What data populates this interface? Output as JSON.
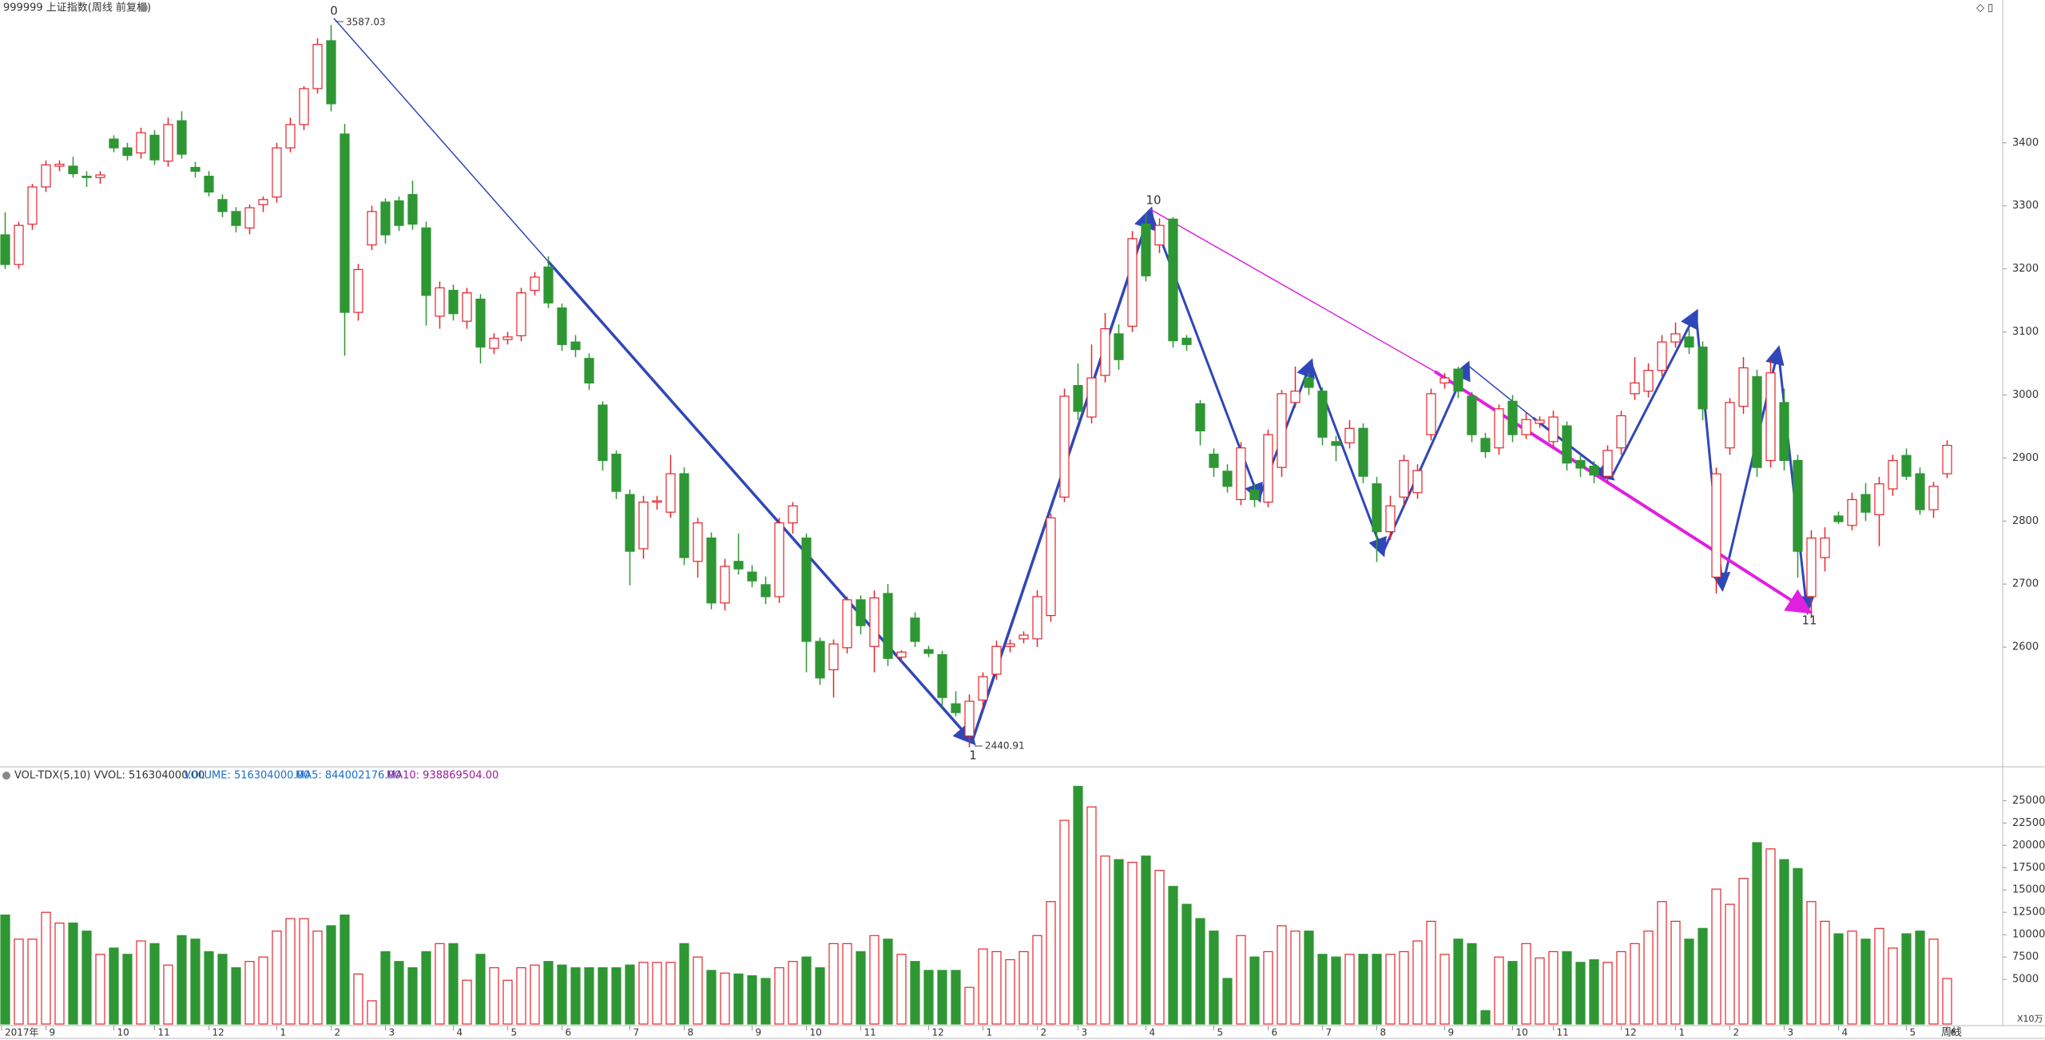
{
  "chart_data": {
    "type": "candlestick",
    "title": "999999 上证指数(周线 前复权)",
    "period": "周线",
    "vol_unit": "X10万",
    "vol_header": [
      "VOL-TDX(5,10) VVOL: 516304000.00",
      "VOLUME: 516304000.00",
      "MA5: 844002176.00",
      "MA10: 938869504.00"
    ],
    "annotations": [
      "0",
      "1",
      "10",
      "11"
    ],
    "up_color": "#e3262d",
    "down_color": "#2f9634",
    "ylim": [
      2410,
      3600
    ],
    "yticks": [
      2600,
      2700,
      2800,
      2900,
      3000,
      3100,
      3200,
      3300,
      3400
    ],
    "vol_ylim": [
      0,
      27000
    ],
    "vol_yticks": [
      5000,
      7500,
      10000,
      12500,
      15000,
      17500,
      20000,
      22500,
      25000
    ],
    "categories": [
      "2017年",
      null,
      null,
      "9",
      null,
      null,
      null,
      null,
      "10",
      null,
      null,
      "11",
      null,
      null,
      null,
      "12",
      null,
      null,
      null,
      null,
      "1",
      null,
      null,
      null,
      "2",
      null,
      null,
      null,
      "3",
      null,
      null,
      null,
      null,
      "4",
      null,
      null,
      null,
      "5",
      null,
      null,
      null,
      "6",
      null,
      null,
      null,
      null,
      "7",
      null,
      null,
      null,
      "8",
      null,
      null,
      null,
      null,
      "9",
      null,
      null,
      null,
      "10",
      null,
      null,
      null,
      "11",
      null,
      null,
      null,
      null,
      "12",
      null,
      null,
      null,
      "1",
      null,
      null,
      null,
      "2",
      null,
      null,
      "3",
      null,
      null,
      null,
      null,
      "4",
      null,
      null,
      null,
      null,
      "5",
      null,
      null,
      null,
      "6",
      null,
      null,
      null,
      "7",
      null,
      null,
      null,
      "8",
      null,
      null,
      null,
      null,
      "9",
      null,
      null,
      null,
      null,
      "10",
      null,
      null,
      "11",
      null,
      null,
      null,
      null,
      "12",
      null,
      null,
      null,
      "1",
      null,
      null,
      null,
      "2",
      null,
      null,
      null,
      "3",
      null,
      null,
      null,
      "4",
      null,
      null,
      null,
      null,
      "5",
      null,
      null,
      "6"
    ],
    "candles": [
      [
        3254,
        3290,
        3200,
        3207
      ],
      [
        3207,
        3275,
        3200,
        3269
      ],
      [
        3271,
        3335,
        3262,
        3330
      ],
      [
        3330,
        3372,
        3322,
        3365
      ],
      [
        3363,
        3372,
        3355,
        3366
      ],
      [
        3363,
        3378,
        3345,
        3351
      ],
      [
        3347,
        3355,
        3330,
        3345
      ],
      [
        3345,
        3355,
        3335,
        3349
      ],
      [
        3406,
        3412,
        3385,
        3392
      ],
      [
        3392,
        3400,
        3372,
        3380
      ],
      [
        3384,
        3424,
        3375,
        3416
      ],
      [
        3412,
        3420,
        3365,
        3373
      ],
      [
        3371,
        3440,
        3362,
        3429
      ],
      [
        3435,
        3450,
        3375,
        3382
      ],
      [
        3361,
        3370,
        3345,
        3355
      ],
      [
        3347,
        3355,
        3315,
        3322
      ],
      [
        3310,
        3318,
        3282,
        3291
      ],
      [
        3291,
        3298,
        3258,
        3269
      ],
      [
        3265,
        3302,
        3255,
        3297
      ],
      [
        3302,
        3315,
        3290,
        3310
      ],
      [
        3314,
        3400,
        3305,
        3392
      ],
      [
        3392,
        3440,
        3385,
        3429
      ],
      [
        3429,
        3490,
        3420,
        3486
      ],
      [
        3486,
        3566,
        3478,
        3556
      ],
      [
        3562,
        3587.03,
        3450,
        3462
      ],
      [
        3414,
        3430,
        3062,
        3131
      ],
      [
        3131,
        3208,
        3118,
        3199
      ],
      [
        3238,
        3300,
        3230,
        3291
      ],
      [
        3306,
        3312,
        3240,
        3254
      ],
      [
        3308,
        3315,
        3260,
        3269
      ],
      [
        3318,
        3340,
        3262,
        3271
      ],
      [
        3265,
        3275,
        3110,
        3158
      ],
      [
        3125,
        3180,
        3105,
        3170
      ],
      [
        3166,
        3175,
        3118,
        3129
      ],
      [
        3117,
        3170,
        3105,
        3162
      ],
      [
        3152,
        3160,
        3050,
        3076
      ],
      [
        3074,
        3098,
        3065,
        3090
      ],
      [
        3088,
        3100,
        3080,
        3092
      ],
      [
        3094,
        3170,
        3085,
        3162
      ],
      [
        3166,
        3195,
        3158,
        3187
      ],
      [
        3203,
        3220,
        3138,
        3146
      ],
      [
        3138,
        3145,
        3070,
        3080
      ],
      [
        3084,
        3095,
        3060,
        3072
      ],
      [
        3058,
        3066,
        3008,
        3019
      ],
      [
        2984,
        2990,
        2880,
        2896
      ],
      [
        2906,
        2912,
        2835,
        2847
      ],
      [
        2842,
        2850,
        2698,
        2752
      ],
      [
        2756,
        2840,
        2740,
        2830
      ],
      [
        2830,
        2840,
        2818,
        2832
      ],
      [
        2814,
        2905,
        2805,
        2875
      ],
      [
        2875,
        2885,
        2730,
        2742
      ],
      [
        2736,
        2805,
        2710,
        2797
      ],
      [
        2773,
        2782,
        2660,
        2670
      ],
      [
        2670,
        2740,
        2658,
        2728
      ],
      [
        2736,
        2780,
        2715,
        2724
      ],
      [
        2719,
        2730,
        2695,
        2705
      ],
      [
        2699,
        2712,
        2668,
        2680
      ],
      [
        2680,
        2805,
        2670,
        2797
      ],
      [
        2797,
        2830,
        2780,
        2824
      ],
      [
        2773,
        2780,
        2560,
        2609
      ],
      [
        2609,
        2615,
        2540,
        2551
      ],
      [
        2564,
        2612,
        2520,
        2605
      ],
      [
        2599,
        2680,
        2590,
        2675
      ],
      [
        2675,
        2682,
        2620,
        2634
      ],
      [
        2601,
        2690,
        2560,
        2678
      ],
      [
        2685,
        2700,
        2570,
        2582
      ],
      [
        2584,
        2595,
        2576,
        2592
      ],
      [
        2646,
        2655,
        2600,
        2609
      ],
      [
        2596,
        2602,
        2584,
        2590
      ],
      [
        2588,
        2594,
        2505,
        2520
      ],
      [
        2510,
        2530,
        2490,
        2496
      ],
      [
        2459,
        2525,
        2440.91,
        2514
      ],
      [
        2516,
        2560,
        2500,
        2553
      ],
      [
        2557,
        2610,
        2548,
        2601
      ],
      [
        2601,
        2612,
        2592,
        2605
      ],
      [
        2613,
        2625,
        2606,
        2619
      ],
      [
        2613,
        2690,
        2600,
        2680
      ],
      [
        2650,
        2812,
        2640,
        2805
      ],
      [
        2838,
        3010,
        2830,
        2998
      ],
      [
        3015,
        3050,
        2960,
        2974
      ],
      [
        2965,
        3080,
        2955,
        3027
      ],
      [
        3031,
        3130,
        3020,
        3105
      ],
      [
        3097,
        3112,
        3040,
        3056
      ],
      [
        3109,
        3260,
        3100,
        3248
      ],
      [
        3271,
        3288,
        3180,
        3189
      ],
      [
        3238,
        3280,
        3225,
        3269
      ],
      [
        3279,
        3282,
        3075,
        3086
      ],
      [
        3090,
        3095,
        3070,
        3080
      ],
      [
        2986,
        2992,
        2920,
        2943
      ],
      [
        2906,
        2915,
        2870,
        2885
      ],
      [
        2879,
        2890,
        2845,
        2855
      ],
      [
        2834,
        2925,
        2825,
        2916
      ],
      [
        2849,
        2860,
        2822,
        2834
      ],
      [
        2830,
        2945,
        2822,
        2937
      ],
      [
        2885,
        3008,
        2870,
        3002
      ],
      [
        2988,
        3045,
        2980,
        3006
      ],
      [
        3027,
        3035,
        3000,
        3012
      ],
      [
        3006,
        3012,
        2920,
        2933
      ],
      [
        2926,
        2935,
        2895,
        2920
      ],
      [
        2924,
        2960,
        2915,
        2947
      ],
      [
        2947,
        2955,
        2860,
        2871
      ],
      [
        2859,
        2870,
        2735,
        2783
      ],
      [
        2783,
        2840,
        2770,
        2824
      ],
      [
        2838,
        2905,
        2825,
        2896
      ],
      [
        2845,
        2890,
        2835,
        2880
      ],
      [
        2937,
        3010,
        2928,
        3002
      ],
      [
        3019,
        3035,
        3010,
        3027
      ],
      [
        3041,
        3045,
        2995,
        3006
      ],
      [
        2998,
        3005,
        2925,
        2937
      ],
      [
        2931,
        2940,
        2900,
        2910
      ],
      [
        2916,
        2985,
        2905,
        2978
      ],
      [
        2990,
        3000,
        2925,
        2937
      ],
      [
        2937,
        2972,
        2930,
        2961
      ],
      [
        2955,
        2966,
        2948,
        2960
      ],
      [
        2926,
        2975,
        2918,
        2965
      ],
      [
        2951,
        2958,
        2880,
        2892
      ],
      [
        2896,
        2905,
        2870,
        2884
      ],
      [
        2887,
        2895,
        2860,
        2873
      ],
      [
        2871,
        2920,
        2862,
        2912
      ],
      [
        2916,
        2975,
        2905,
        2967
      ],
      [
        3002,
        3060,
        2992,
        3019
      ],
      [
        3006,
        3050,
        2996,
        3039
      ],
      [
        3039,
        3095,
        3030,
        3084
      ],
      [
        3084,
        3115,
        3075,
        3097
      ],
      [
        3092,
        3105,
        3065,
        3076
      ],
      [
        3076,
        3085,
        2960,
        2978
      ],
      [
        2711,
        2885,
        2685,
        2875
      ],
      [
        2916,
        2995,
        2905,
        2988
      ],
      [
        2982,
        3060,
        2970,
        3043
      ],
      [
        3029,
        3040,
        2870,
        2885
      ],
      [
        2896,
        3055,
        2885,
        3035
      ],
      [
        2988,
        3010,
        2880,
        2896
      ],
      [
        2896,
        2905,
        2710,
        2752
      ],
      [
        2680,
        2785,
        2646,
        2773
      ],
      [
        2742,
        2790,
        2720,
        2773
      ],
      [
        2808,
        2815,
        2795,
        2799
      ],
      [
        2793,
        2845,
        2785,
        2834
      ],
      [
        2842,
        2860,
        2800,
        2814
      ],
      [
        2810,
        2870,
        2760,
        2859
      ],
      [
        2851,
        2905,
        2840,
        2896
      ],
      [
        2904,
        2915,
        2865,
        2871
      ],
      [
        2875,
        2885,
        2810,
        2818
      ],
      [
        2818,
        2862,
        2805,
        2855
      ],
      [
        2875,
        2928,
        2868,
        2920
      ]
    ],
    "volume": [
      12200,
      9500,
      9500,
      12500,
      11300,
      11300,
      10400,
      7800,
      8500,
      7800,
      9300,
      9000,
      6600,
      9900,
      9500,
      8100,
      7800,
      6300,
      7000,
      7500,
      10400,
      11800,
      11800,
      10400,
      11000,
      12200,
      5600,
      2600,
      8100,
      7000,
      6300,
      8100,
      9000,
      9000,
      4900,
      7800,
      6300,
      4900,
      6300,
      6600,
      7000,
      6600,
      6300,
      6300,
      6300,
      6300,
      6600,
      6900,
      6900,
      6900,
      9000,
      7500,
      6000,
      5700,
      5600,
      5400,
      5100,
      6300,
      7000,
      7500,
      6300,
      9000,
      9000,
      8100,
      9900,
      9500,
      7800,
      7000,
      6000,
      6000,
      6000,
      4100,
      8400,
      8100,
      7200,
      8100,
      9900,
      13700,
      22800,
      26600,
      24300,
      18800,
      18400,
      18100,
      18800,
      17200,
      15400,
      13400,
      11800,
      10400,
      5100,
      9900,
      7500,
      8100,
      11000,
      10400,
      10400,
      7800,
      7500,
      7800,
      7800,
      7800,
      7800,
      8100,
      9300,
      11500,
      7800,
      9500,
      9000,
      1500,
      7500,
      7000,
      9000,
      7400,
      8100,
      8100,
      6900,
      7200,
      6900,
      8100,
      9000,
      10400,
      13700,
      11500,
      9500,
      10700,
      15100,
      13400,
      16300,
      20300,
      19600,
      18400,
      17400,
      13700,
      11500,
      10100,
      10400,
      9500,
      10700,
      8500,
      10100,
      10400,
      9500,
      5100
    ]
  }
}
